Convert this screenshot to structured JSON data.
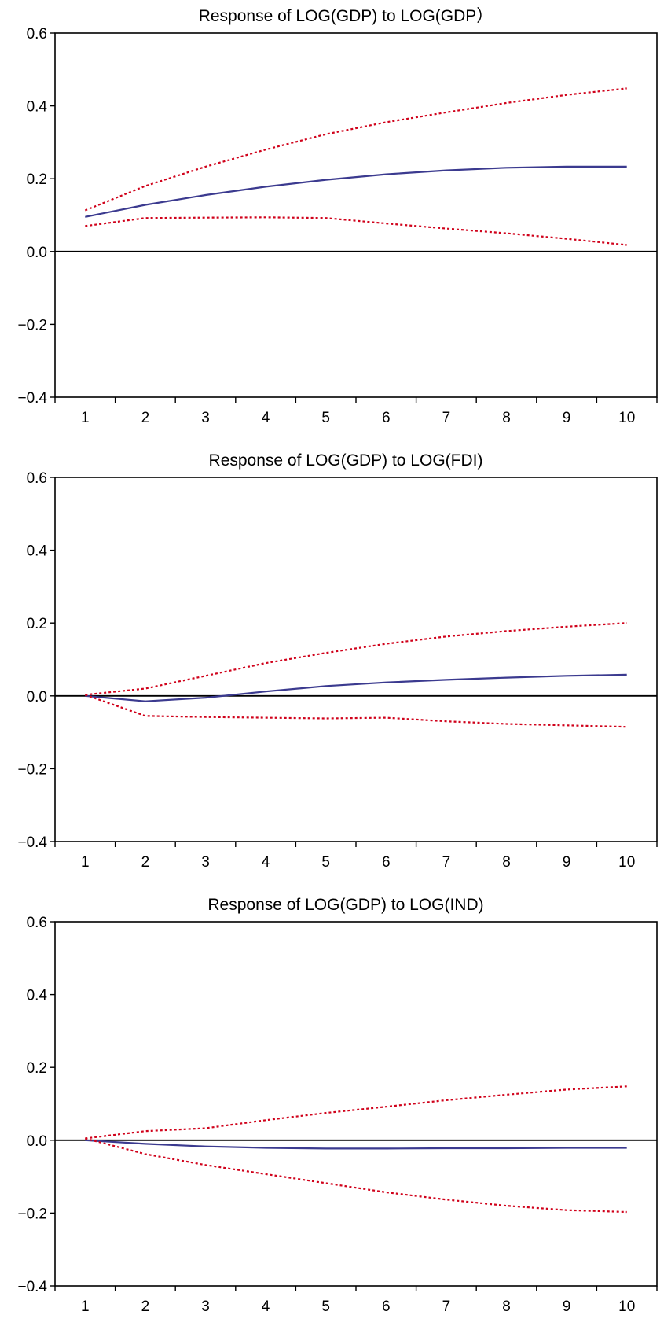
{
  "chart_data": [
    {
      "type": "line",
      "title": "Response of LOG(GDP) to LOG(GDP）",
      "x": [
        1,
        2,
        3,
        4,
        5,
        6,
        7,
        8,
        9,
        10
      ],
      "xticks": [
        "1",
        "2",
        "3",
        "4",
        "5",
        "6",
        "7",
        "8",
        "9",
        "10"
      ],
      "ylim": [
        -0.4,
        0.6
      ],
      "yticks": [
        "−0.4",
        "−0.2",
        "0.0",
        "0.2",
        "0.4",
        "0.6"
      ],
      "zero_line": true,
      "grid": false,
      "series": [
        {
          "role": "response",
          "style": "solid",
          "color": "#3b3a8f",
          "values": [
            0.095,
            0.128,
            0.155,
            0.178,
            0.197,
            0.212,
            0.223,
            0.23,
            0.233,
            0.233
          ]
        },
        {
          "role": "upper band",
          "style": "dotted",
          "color": "#d0021b",
          "values": [
            0.113,
            0.18,
            0.233,
            0.28,
            0.322,
            0.355,
            0.382,
            0.408,
            0.43,
            0.448
          ]
        },
        {
          "role": "lower band",
          "style": "dotted",
          "color": "#d0021b",
          "values": [
            0.07,
            0.092,
            0.093,
            0.094,
            0.092,
            0.077,
            0.063,
            0.05,
            0.035,
            0.018
          ]
        }
      ]
    },
    {
      "type": "line",
      "title": "Response of LOG(GDP) to LOG(FDI)",
      "x": [
        1,
        2,
        3,
        4,
        5,
        6,
        7,
        8,
        9,
        10
      ],
      "xticks": [
        "1",
        "2",
        "3",
        "4",
        "5",
        "6",
        "7",
        "8",
        "9",
        "10"
      ],
      "ylim": [
        -0.4,
        0.6
      ],
      "yticks": [
        "−0.4",
        "−0.2",
        "0.0",
        "0.2",
        "0.4",
        "0.6"
      ],
      "zero_line": true,
      "grid": false,
      "series": [
        {
          "role": "response",
          "style": "solid",
          "color": "#3b3a8f",
          "values": [
            0.0,
            -0.015,
            -0.005,
            0.012,
            0.027,
            0.037,
            0.044,
            0.05,
            0.055,
            0.058
          ]
        },
        {
          "role": "upper band",
          "style": "dotted",
          "color": "#d0021b",
          "values": [
            0.003,
            0.02,
            0.055,
            0.09,
            0.118,
            0.143,
            0.163,
            0.178,
            0.19,
            0.2
          ]
        },
        {
          "role": "lower band",
          "style": "dotted",
          "color": "#d0021b",
          "values": [
            0.003,
            -0.055,
            -0.058,
            -0.06,
            -0.062,
            -0.06,
            -0.07,
            -0.077,
            -0.081,
            -0.085
          ]
        }
      ]
    },
    {
      "type": "line",
      "title": "Response of LOG(GDP) to LOG(IND)",
      "x": [
        1,
        2,
        3,
        4,
        5,
        6,
        7,
        8,
        9,
        10
      ],
      "xticks": [
        "1",
        "2",
        "3",
        "4",
        "5",
        "6",
        "7",
        "8",
        "9",
        "10"
      ],
      "ylim": [
        -0.4,
        0.6
      ],
      "yticks": [
        "−0.4",
        "−0.2",
        "0.0",
        "0.2",
        "0.4",
        "0.6"
      ],
      "zero_line": true,
      "grid": false,
      "series": [
        {
          "role": "response",
          "style": "solid",
          "color": "#3b3a8f",
          "values": [
            0.0,
            -0.01,
            -0.017,
            -0.021,
            -0.023,
            -0.023,
            -0.022,
            -0.022,
            -0.021,
            -0.021
          ]
        },
        {
          "role": "upper band",
          "style": "dotted",
          "color": "#d0021b",
          "values": [
            0.005,
            0.025,
            0.033,
            0.055,
            0.075,
            0.092,
            0.11,
            0.125,
            0.139,
            0.148
          ]
        },
        {
          "role": "lower band",
          "style": "dotted",
          "color": "#d0021b",
          "values": [
            0.005,
            -0.038,
            -0.068,
            -0.093,
            -0.118,
            -0.143,
            -0.163,
            -0.18,
            -0.192,
            -0.197
          ]
        }
      ]
    }
  ]
}
